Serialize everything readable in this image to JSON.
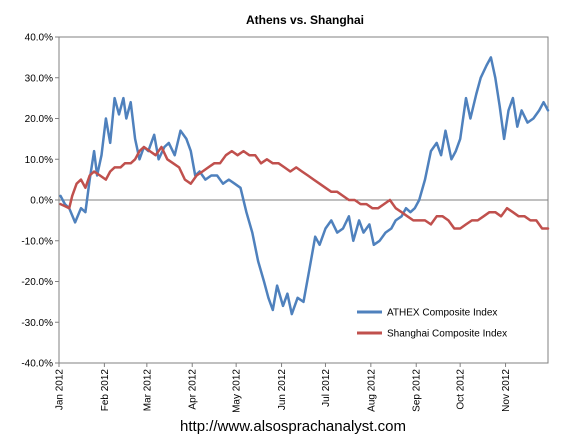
{
  "chart_data": {
    "type": "line",
    "title": "Athens vs. Shanghai",
    "ylim": [
      -40,
      40
    ],
    "yticks": [
      40,
      30,
      20,
      10,
      0,
      -10,
      -20,
      -30,
      -40
    ],
    "ytick_labels": [
      "40.0%",
      "30.0%",
      "20.0%",
      "10.0%",
      "0.0%",
      "-10.0%",
      "-20.0%",
      "-30.0%",
      "-40.0%"
    ],
    "xlim": [
      "2012-01-01",
      "2012-11-30"
    ],
    "x_tick_dates": [
      "2012-01-01",
      "2012-02-01",
      "2012-03-01",
      "2012-04-01",
      "2012-05-01",
      "2012-06-01",
      "2012-07-01",
      "2012-08-01",
      "2012-09-01",
      "2012-10-01",
      "2012-11-01"
    ],
    "x_tick_labels": [
      "Jan 2012",
      "Feb 2012",
      "Mar 2012",
      "Apr 2012",
      "May 2012",
      "Jun 2012",
      "Jul 2012",
      "Aug 2012",
      "Sep 2012",
      "Oct 2012",
      "Nov 2012"
    ],
    "grid": false,
    "zero_line": true,
    "legend_position": "lower-right",
    "series": [
      {
        "name": "ATHEX Composite Index",
        "color": "#4F81BD",
        "points": [
          [
            "2012-01-02",
            1
          ],
          [
            "2012-01-05",
            -1
          ],
          [
            "2012-01-08",
            -2
          ],
          [
            "2012-01-12",
            -5.5
          ],
          [
            "2012-01-16",
            -2
          ],
          [
            "2012-01-19",
            -3
          ],
          [
            "2012-01-22",
            5
          ],
          [
            "2012-01-25",
            12
          ],
          [
            "2012-01-27",
            6
          ],
          [
            "2012-01-30",
            11
          ],
          [
            "2012-02-02",
            20
          ],
          [
            "2012-02-05",
            14
          ],
          [
            "2012-02-08",
            25
          ],
          [
            "2012-02-11",
            21
          ],
          [
            "2012-02-14",
            25
          ],
          [
            "2012-02-16",
            20
          ],
          [
            "2012-02-19",
            24
          ],
          [
            "2012-02-22",
            15
          ],
          [
            "2012-02-25",
            10
          ],
          [
            "2012-02-28",
            13
          ],
          [
            "2012-03-02",
            12
          ],
          [
            "2012-03-06",
            16
          ],
          [
            "2012-03-09",
            10
          ],
          [
            "2012-03-13",
            13
          ],
          [
            "2012-03-16",
            14
          ],
          [
            "2012-03-20",
            11
          ],
          [
            "2012-03-24",
            17
          ],
          [
            "2012-03-28",
            15
          ],
          [
            "2012-03-31",
            12
          ],
          [
            "2012-04-03",
            6
          ],
          [
            "2012-04-06",
            7
          ],
          [
            "2012-04-10",
            5
          ],
          [
            "2012-04-14",
            6
          ],
          [
            "2012-04-18",
            6
          ],
          [
            "2012-04-22",
            4
          ],
          [
            "2012-04-26",
            5
          ],
          [
            "2012-04-30",
            4
          ],
          [
            "2012-05-04",
            3
          ],
          [
            "2012-05-08",
            -3
          ],
          [
            "2012-05-12",
            -8
          ],
          [
            "2012-05-16",
            -15
          ],
          [
            "2012-05-20",
            -20
          ],
          [
            "2012-05-23",
            -24
          ],
          [
            "2012-05-26",
            -27
          ],
          [
            "2012-05-29",
            -21
          ],
          [
            "2012-06-02",
            -26
          ],
          [
            "2012-06-05",
            -23
          ],
          [
            "2012-06-08",
            -28
          ],
          [
            "2012-06-12",
            -24
          ],
          [
            "2012-06-16",
            -25
          ],
          [
            "2012-06-20",
            -17
          ],
          [
            "2012-06-24",
            -9
          ],
          [
            "2012-06-27",
            -11
          ],
          [
            "2012-07-01",
            -7
          ],
          [
            "2012-07-05",
            -5
          ],
          [
            "2012-07-09",
            -8
          ],
          [
            "2012-07-13",
            -7
          ],
          [
            "2012-07-17",
            -4
          ],
          [
            "2012-07-20",
            -10
          ],
          [
            "2012-07-24",
            -5
          ],
          [
            "2012-07-27",
            -8
          ],
          [
            "2012-07-31",
            -6
          ],
          [
            "2012-08-03",
            -11
          ],
          [
            "2012-08-07",
            -10
          ],
          [
            "2012-08-11",
            -8
          ],
          [
            "2012-08-15",
            -7
          ],
          [
            "2012-08-18",
            -5
          ],
          [
            "2012-08-22",
            -4
          ],
          [
            "2012-08-25",
            -2
          ],
          [
            "2012-08-28",
            -3
          ],
          [
            "2012-08-31",
            -2
          ],
          [
            "2012-09-03",
            0
          ],
          [
            "2012-09-07",
            5
          ],
          [
            "2012-09-11",
            12
          ],
          [
            "2012-09-15",
            14
          ],
          [
            "2012-09-18",
            11
          ],
          [
            "2012-09-21",
            17
          ],
          [
            "2012-09-25",
            10
          ],
          [
            "2012-09-28",
            12
          ],
          [
            "2012-10-01",
            15
          ],
          [
            "2012-10-05",
            25
          ],
          [
            "2012-10-08",
            20
          ],
          [
            "2012-10-12",
            26
          ],
          [
            "2012-10-15",
            30
          ],
          [
            "2012-10-19",
            33
          ],
          [
            "2012-10-22",
            35
          ],
          [
            "2012-10-25",
            30
          ],
          [
            "2012-10-28",
            23
          ],
          [
            "2012-10-31",
            15
          ],
          [
            "2012-11-03",
            22
          ],
          [
            "2012-11-06",
            25
          ],
          [
            "2012-11-09",
            18
          ],
          [
            "2012-11-12",
            22
          ],
          [
            "2012-11-16",
            19
          ],
          [
            "2012-11-20",
            20
          ],
          [
            "2012-11-24",
            22
          ],
          [
            "2012-11-27",
            24
          ],
          [
            "2012-11-30",
            22
          ]
        ]
      },
      {
        "name": "Shanghai Composite Index",
        "color": "#C0504D",
        "points": [
          [
            "2012-01-02",
            -1
          ],
          [
            "2012-01-05",
            -1.5
          ],
          [
            "2012-01-08",
            -2
          ],
          [
            "2012-01-10",
            1
          ],
          [
            "2012-01-13",
            4
          ],
          [
            "2012-01-16",
            5
          ],
          [
            "2012-01-19",
            3
          ],
          [
            "2012-01-22",
            6
          ],
          [
            "2012-01-25",
            7
          ],
          [
            "2012-01-29",
            6
          ],
          [
            "2012-02-02",
            5
          ],
          [
            "2012-02-05",
            7
          ],
          [
            "2012-02-08",
            8
          ],
          [
            "2012-02-12",
            8
          ],
          [
            "2012-02-15",
            9
          ],
          [
            "2012-02-19",
            9
          ],
          [
            "2012-02-22",
            10
          ],
          [
            "2012-02-25",
            12
          ],
          [
            "2012-02-28",
            13
          ],
          [
            "2012-03-03",
            12
          ],
          [
            "2012-03-07",
            11
          ],
          [
            "2012-03-11",
            13
          ],
          [
            "2012-03-15",
            10
          ],
          [
            "2012-03-19",
            9
          ],
          [
            "2012-03-23",
            8
          ],
          [
            "2012-03-27",
            5
          ],
          [
            "2012-03-31",
            4
          ],
          [
            "2012-04-04",
            6
          ],
          [
            "2012-04-08",
            7
          ],
          [
            "2012-04-12",
            8
          ],
          [
            "2012-04-16",
            9
          ],
          [
            "2012-04-20",
            9
          ],
          [
            "2012-04-24",
            11
          ],
          [
            "2012-04-28",
            12
          ],
          [
            "2012-05-02",
            11
          ],
          [
            "2012-05-06",
            12
          ],
          [
            "2012-05-10",
            11
          ],
          [
            "2012-05-14",
            11
          ],
          [
            "2012-05-18",
            9
          ],
          [
            "2012-05-22",
            10
          ],
          [
            "2012-05-26",
            9
          ],
          [
            "2012-05-30",
            9
          ],
          [
            "2012-06-03",
            8
          ],
          [
            "2012-06-07",
            7
          ],
          [
            "2012-06-11",
            8
          ],
          [
            "2012-06-15",
            7
          ],
          [
            "2012-06-19",
            6
          ],
          [
            "2012-06-23",
            5
          ],
          [
            "2012-06-27",
            4
          ],
          [
            "2012-07-01",
            3
          ],
          [
            "2012-07-05",
            2
          ],
          [
            "2012-07-09",
            2
          ],
          [
            "2012-07-13",
            1
          ],
          [
            "2012-07-17",
            0
          ],
          [
            "2012-07-21",
            0
          ],
          [
            "2012-07-25",
            -1
          ],
          [
            "2012-07-29",
            -1
          ],
          [
            "2012-08-02",
            -2
          ],
          [
            "2012-08-06",
            -2
          ],
          [
            "2012-08-10",
            -1
          ],
          [
            "2012-08-14",
            0
          ],
          [
            "2012-08-18",
            -2
          ],
          [
            "2012-08-22",
            -3
          ],
          [
            "2012-08-26",
            -4
          ],
          [
            "2012-08-30",
            -5
          ],
          [
            "2012-09-03",
            -5
          ],
          [
            "2012-09-07",
            -5
          ],
          [
            "2012-09-11",
            -6
          ],
          [
            "2012-09-15",
            -4
          ],
          [
            "2012-09-19",
            -4
          ],
          [
            "2012-09-23",
            -5
          ],
          [
            "2012-09-27",
            -7
          ],
          [
            "2012-10-01",
            -7
          ],
          [
            "2012-10-05",
            -6
          ],
          [
            "2012-10-09",
            -5
          ],
          [
            "2012-10-13",
            -5
          ],
          [
            "2012-10-17",
            -4
          ],
          [
            "2012-10-21",
            -3
          ],
          [
            "2012-10-25",
            -3
          ],
          [
            "2012-10-29",
            -4
          ],
          [
            "2012-11-02",
            -2
          ],
          [
            "2012-11-06",
            -3
          ],
          [
            "2012-11-10",
            -4
          ],
          [
            "2012-11-14",
            -4
          ],
          [
            "2012-11-18",
            -5
          ],
          [
            "2012-11-22",
            -5
          ],
          [
            "2012-11-26",
            -7
          ],
          [
            "2012-11-30",
            -7
          ]
        ]
      }
    ]
  },
  "footer": {
    "url": "http://www.alsosprachanalyst.com"
  }
}
